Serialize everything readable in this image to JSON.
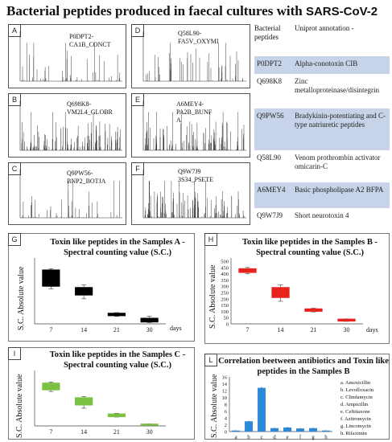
{
  "title_main": "Bacterial peptides produced in faecal  cultures with ",
  "title_sars": "SARS-CoV-2",
  "spectra": [
    {
      "letter": "A",
      "label": "P0DPT2-\nCA1B_CONCT"
    },
    {
      "letter": "B",
      "label": "Q698K8-\nVM2L4_GLOBR"
    },
    {
      "letter": "C",
      "label": "Q9PW56-\nBNP2_BOTJA"
    },
    {
      "letter": "D",
      "label": "Q58L90-\nFA5V_OXYMI"
    },
    {
      "letter": "E",
      "label": "A6MEY4-\nPA2B_BUNF\nA"
    },
    {
      "letter": "F",
      "label": "Q9W7J9\n3S34_PSETE"
    }
  ],
  "table": {
    "header_col1": "Bacterial peptides",
    "header_col2": "Uniprot annotation -",
    "rows": [
      {
        "id": "P0DPT2",
        "desc": "Alpha-conotoxin CIB"
      },
      {
        "id": "Q698K8",
        "desc": "Zinc metalloproteinase/disintegrin"
      },
      {
        "id": "Q9PW56",
        "desc": "Bradykinin-potentiating and C-type natriuretic peptides"
      },
      {
        "id": "Q58L90",
        "desc": "Venom prothrombin activator omicarin-C"
      },
      {
        "id": "A6MEY4",
        "desc": "Basic phospholipase A2 BFPA"
      },
      {
        "id": "Q9W7J9",
        "desc": "Short neurotoxin 4"
      }
    ]
  },
  "chart_data": [
    {
      "panel": "G",
      "type": "box",
      "title": "Toxin like peptides in the Samples A - Spectral counting value (S.C.)",
      "ylabel": "S.C. Absolute value",
      "xlabel": "days",
      "categories": [
        "7",
        "14",
        "21",
        "30"
      ],
      "ylim": [
        0,
        500
      ],
      "yticks": [],
      "color": "#000000",
      "boxes": [
        {
          "min": 280,
          "q1": 300,
          "q3": 430,
          "max": 440
        },
        {
          "min": 200,
          "q1": 230,
          "q3": 290,
          "max": 310
        },
        {
          "min": 60,
          "q1": 65,
          "q3": 85,
          "max": 90
        },
        {
          "min": 10,
          "q1": 15,
          "q3": 45,
          "max": 60
        }
      ]
    },
    {
      "panel": "H",
      "type": "box",
      "title": "Toxin like peptides in the Samples B - Spectral counting value (S.C.)",
      "ylabel": "S.C. Absolute value",
      "xlabel": "days",
      "categories": [
        "7",
        "14",
        "21",
        "30"
      ],
      "ylim": [
        0,
        500
      ],
      "yticks": [
        0,
        50,
        100,
        150,
        200,
        250,
        300,
        350,
        400,
        450,
        500
      ],
      "color": "#e8231d",
      "boxes": [
        {
          "min": 400,
          "q1": 410,
          "q3": 440,
          "max": 450
        },
        {
          "min": 180,
          "q1": 210,
          "q3": 290,
          "max": 310
        },
        {
          "min": 95,
          "q1": 100,
          "q3": 120,
          "max": 125
        },
        {
          "min": 20,
          "q1": 22,
          "q3": 38,
          "max": 40
        }
      ]
    },
    {
      "panel": "I",
      "type": "box",
      "title": "Toxin like peptides in the Samples C - Spectral counting value (S.C.)",
      "ylabel": "S.C. Absolute value",
      "xlabel": "days",
      "categories": [
        "7",
        "14",
        "21",
        "30"
      ],
      "ylim": [
        0,
        500
      ],
      "yticks": [],
      "color": "#7cc142",
      "boxes": [
        {
          "min": 330,
          "q1": 345,
          "q3": 410,
          "max": 420
        },
        {
          "min": 170,
          "q1": 200,
          "q3": 270,
          "max": 280
        },
        {
          "min": 85,
          "q1": 88,
          "q3": 115,
          "max": 120
        },
        {
          "min": 10,
          "q1": 12,
          "q3": 18,
          "max": 20
        }
      ]
    },
    {
      "panel": "L",
      "type": "bar",
      "title": "Correlation beetween antibiotics  and  Toxin like peptides in the Samples B",
      "ylabel": "S.C. Absolute value",
      "categories": [
        "a",
        "b",
        "c",
        "d",
        "e",
        "f",
        "g",
        "h"
      ],
      "values": [
        0.3,
        3,
        12.8,
        1,
        1.2,
        0.9,
        1,
        0.3
      ],
      "errors": [
        0.1,
        0.2,
        0.4,
        0.15,
        0.2,
        0.15,
        0.15,
        0.1
      ],
      "ylim": [
        0,
        16
      ],
      "yticks": [
        0,
        2,
        4,
        6,
        8,
        10,
        12,
        14,
        16
      ],
      "color": "#2b8ad8",
      "legend": [
        "a. Amoxicillin",
        "b. Levofloxacin",
        "c. Clindamycin",
        "d. Ampicillin",
        "e. Ceftriaxone",
        "f. Azitromycin",
        "g. Lincomycin",
        "h. Rifaximin"
      ]
    }
  ]
}
